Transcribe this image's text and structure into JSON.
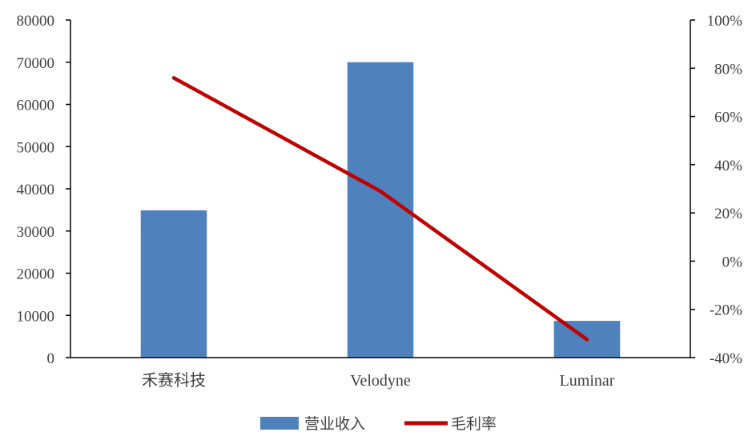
{
  "chart_data": {
    "type": "bar",
    "categories": [
      "禾赛科技",
      "Velodyne",
      "Luminar"
    ],
    "series": [
      {
        "name": "营业收入",
        "type": "bar",
        "axis": "left",
        "values": [
          34900,
          70000,
          8700
        ],
        "color": "#4F81BD"
      },
      {
        "name": "毛利率",
        "type": "line",
        "axis": "right",
        "values": [
          76,
          29,
          -32.5
        ],
        "color": "#C00000"
      }
    ],
    "y_left": {
      "ylim": [
        0,
        80000
      ],
      "ticks": [
        "0",
        "10000",
        "20000",
        "30000",
        "40000",
        "50000",
        "60000",
        "70000",
        "80000"
      ]
    },
    "y_right": {
      "ylim": [
        -40,
        100
      ],
      "ticks": [
        "-40%",
        "-20%",
        "0%",
        "20%",
        "40%",
        "60%",
        "80%",
        "100%"
      ]
    },
    "title": "",
    "xlabel": "",
    "grid": false,
    "legend_position": "bottom"
  }
}
